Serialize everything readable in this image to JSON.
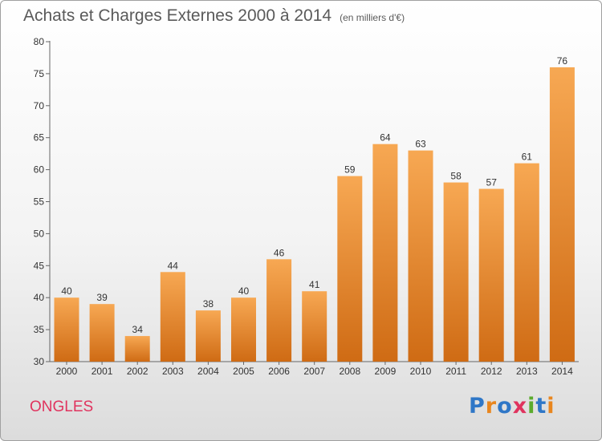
{
  "header": {
    "title": "Achats et Charges Externes 2000 à 2014",
    "subtitle": "(en milliers d'€)"
  },
  "commune": "ONGLES",
  "logo": {
    "text": "Proxiti"
  },
  "colors": {
    "bar_light": "#f7a853",
    "bar_dark": "#cf6b14",
    "commune": "#e0335e",
    "axis_text": "#333333"
  },
  "chart_data": {
    "type": "bar",
    "title": "Achats et Charges Externes 2000 à 2014",
    "subtitle": "(en milliers d'€)",
    "categories": [
      "2000",
      "2001",
      "2002",
      "2003",
      "2004",
      "2005",
      "2006",
      "2007",
      "2008",
      "2009",
      "2010",
      "2011",
      "2012",
      "2013",
      "2014"
    ],
    "values": [
      40,
      39,
      34,
      44,
      38,
      40,
      46,
      41,
      59,
      64,
      63,
      58,
      57,
      61,
      76
    ],
    "ylim": [
      30,
      80
    ],
    "yticks": [
      30,
      35,
      40,
      45,
      50,
      55,
      60,
      65,
      70,
      75,
      80
    ],
    "grid": false,
    "data_labels": true
  }
}
